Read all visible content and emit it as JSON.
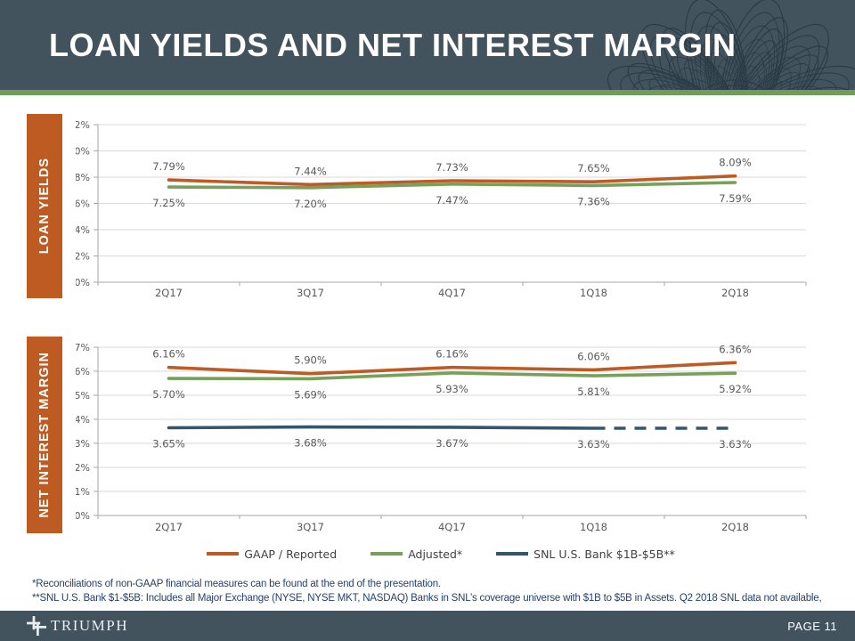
{
  "slide": {
    "title": "LOAN YIELDS AND NET INTEREST MARGIN",
    "page_label": "PAGE 11",
    "logo_text": "TRIUMPH",
    "footnote1": "*Reconciliations of non-GAAP financial measures can be found at the end of the presentation.",
    "footnote2": "**SNL U.S. Bank $1-$5B: Includes all Major Exchange (NYSE, NYSE MKT, NASDAQ) Banks in SNL’s coverage universe with $1B to $5B in Assets. Q2 2018 SNL data not available,"
  },
  "colors": {
    "header_bg": "#43535e",
    "accent_green": "#6f9c57",
    "sidebar_orange": "#bd5b22",
    "line_orange": "#be5b23",
    "line_green": "#76a05c",
    "line_blue": "#31566f",
    "gridline": "#d9d9d9",
    "axis": "#a6a6a6",
    "label_gray": "#595959",
    "footnote_navy": "#24426e"
  },
  "legend": [
    {
      "label": "GAAP / Reported",
      "color": "#be5b23"
    },
    {
      "label": "Adjusted*",
      "color": "#76a05c"
    },
    {
      "label": "SNL U.S. Bank $1B-$5B**",
      "color": "#31566f"
    }
  ],
  "chart_data": [
    {
      "type": "line",
      "title": "LOAN YIELDS",
      "categories": [
        "2Q17",
        "3Q17",
        "4Q17",
        "1Q18",
        "2Q18"
      ],
      "ylim": [
        0,
        12
      ],
      "ytick_step": 2,
      "ytick_suffix": "%",
      "grid": true,
      "legend_position": "shared-bottom",
      "series": [
        {
          "name": "GAAP / Reported",
          "color": "#be5b23",
          "values": [
            7.79,
            7.44,
            7.73,
            7.65,
            8.09
          ],
          "label_position": "above"
        },
        {
          "name": "Adjusted*",
          "color": "#76a05c",
          "values": [
            7.25,
            7.2,
            7.47,
            7.36,
            7.59
          ],
          "label_position": "below"
        }
      ]
    },
    {
      "type": "line",
      "title": "NET INTEREST MARGIN",
      "categories": [
        "2Q17",
        "3Q17",
        "4Q17",
        "1Q18",
        "2Q18"
      ],
      "ylim": [
        0,
        7
      ],
      "ytick_step": 1,
      "ytick_suffix": "%",
      "grid": true,
      "legend_position": "shared-bottom",
      "series": [
        {
          "name": "GAAP / Reported",
          "color": "#be5b23",
          "values": [
            6.16,
            5.9,
            6.16,
            6.06,
            6.36
          ],
          "label_position": "above"
        },
        {
          "name": "Adjusted*",
          "color": "#76a05c",
          "values": [
            5.7,
            5.69,
            5.93,
            5.81,
            5.92
          ],
          "label_position": "below"
        },
        {
          "name": "SNL U.S. Bank $1B-$5B**",
          "color": "#31566f",
          "values": [
            3.65,
            3.68,
            3.67,
            3.63,
            3.63
          ],
          "label_position": "below",
          "dash_from_index": 3
        }
      ]
    }
  ]
}
